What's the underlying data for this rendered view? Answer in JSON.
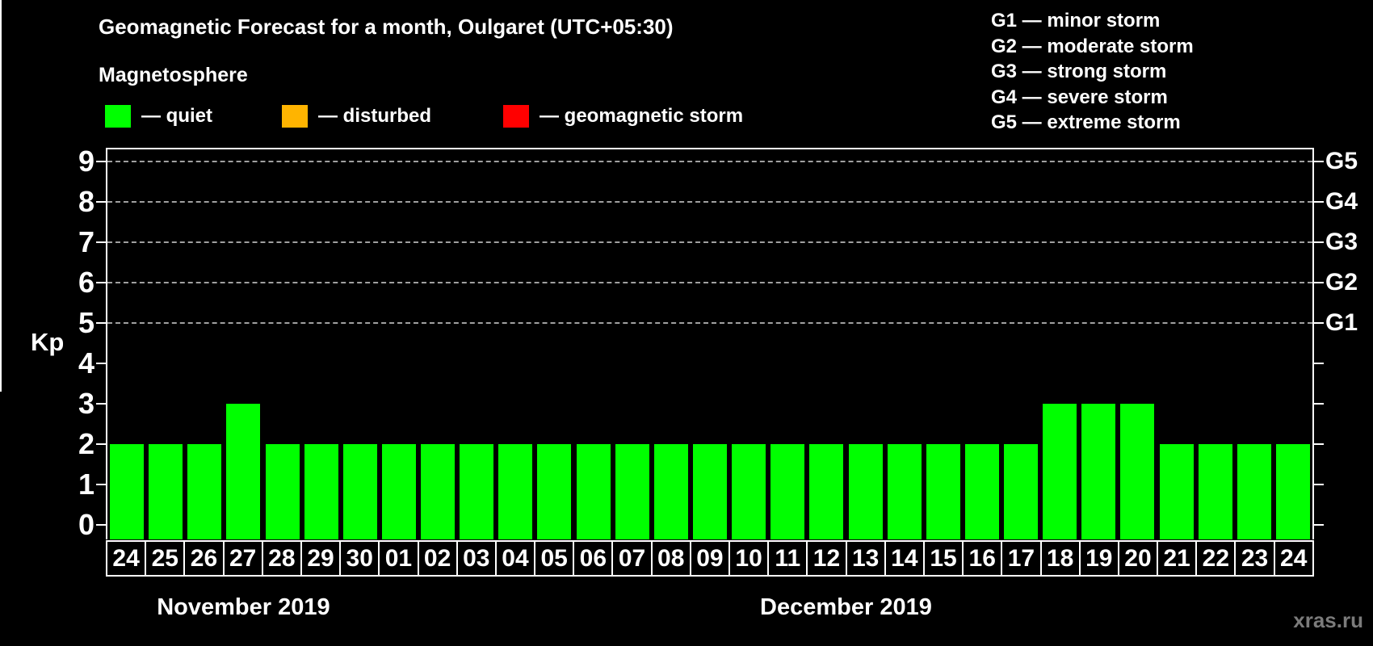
{
  "title": "Geomagnetic Forecast for a month, Oulgaret (UTC+05:30)",
  "legend": {
    "heading": "Magnetosphere",
    "items": [
      {
        "name": "quiet",
        "label": "— quiet",
        "color": "#00ff00"
      },
      {
        "name": "disturbed",
        "label": "— disturbed",
        "color": "#ffb400"
      },
      {
        "name": "geomagnetic-storm",
        "label": "— geomagnetic storm",
        "color": "#ff0000"
      }
    ]
  },
  "storm_scale_legend": [
    "G1 — minor storm",
    "G2 — moderate storm",
    "G3 — strong storm",
    "G4 — severe storm",
    "G5 — extreme storm"
  ],
  "watermark": "xras.ru",
  "chart_data": {
    "type": "bar",
    "title": "Geomagnetic Forecast for a month, Oulgaret (UTC+05:30)",
    "ylabel": "Kp",
    "ylim": [
      -0.36,
      9.34
    ],
    "y_ticks": [
      0,
      1,
      2,
      3,
      4,
      5,
      6,
      7,
      8,
      9
    ],
    "gridlines_at": [
      5,
      6,
      7,
      8,
      9
    ],
    "grid_style": "dashed horizontal lines only at Kp 5-9 (G1-G5 levels)",
    "right_axis_labels": [
      {
        "kp": 5,
        "label": "G1"
      },
      {
        "kp": 6,
        "label": "G2"
      },
      {
        "kp": 7,
        "label": "G3"
      },
      {
        "kp": 8,
        "label": "G4"
      },
      {
        "kp": 9,
        "label": "G5"
      }
    ],
    "bar_color": "#00ff00",
    "axis_color": "#ffffff",
    "grid_color": "#a0a0a0",
    "groups": [
      {
        "month_label": "November 2019",
        "days": [
          "24",
          "25",
          "26",
          "27",
          "28",
          "29",
          "30"
        ],
        "values": [
          2,
          2,
          2,
          3,
          2,
          2,
          2
        ]
      },
      {
        "month_label": "December 2019",
        "days": [
          "01",
          "02",
          "03",
          "04",
          "05",
          "06",
          "07",
          "08",
          "09",
          "10",
          "11",
          "12",
          "13",
          "14",
          "15",
          "16",
          "17",
          "18",
          "19",
          "20",
          "21",
          "22",
          "23",
          "24"
        ],
        "values": [
          2,
          2,
          2,
          2,
          2,
          2,
          2,
          2,
          2,
          2,
          2,
          2,
          2,
          2,
          2,
          2,
          2,
          3,
          3,
          3,
          2,
          2,
          2,
          2
        ]
      }
    ]
  },
  "colors": {
    "background": "#000000",
    "text": "#ffffff",
    "quiet": "#00ff00",
    "disturbed": "#ffb400",
    "storm": "#ff0000",
    "grid": "#a0a0a0",
    "watermark": "#7b7b7b"
  }
}
